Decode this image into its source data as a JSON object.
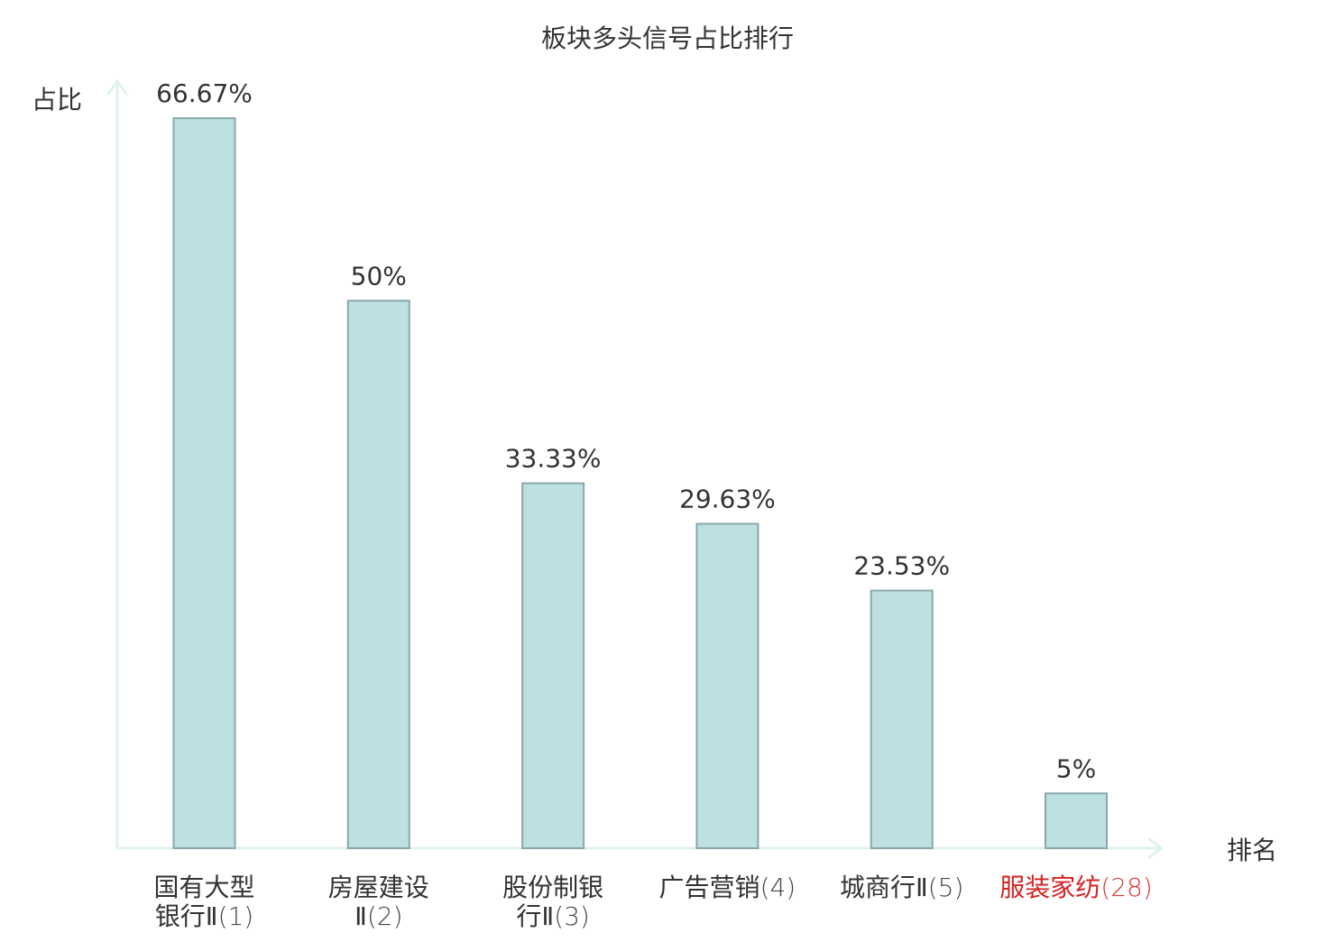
{
  "chart_data": {
    "type": "bar",
    "title": "板块多头信号占比排行",
    "ylabel": "占比",
    "xlabel": "排名",
    "categories": [
      {
        "name_lines": [
          "国有大型",
          "银行Ⅱ"
        ],
        "rank": "(1)",
        "highlight": false
      },
      {
        "name_lines": [
          "房屋建设",
          "Ⅱ"
        ],
        "rank": "(2)",
        "highlight": false
      },
      {
        "name_lines": [
          "股份制银",
          "行Ⅱ"
        ],
        "rank": "(3)",
        "highlight": false
      },
      {
        "name_lines": [
          "广告营销"
        ],
        "rank": "(4)",
        "highlight": false
      },
      {
        "name_lines": [
          "城商行Ⅱ"
        ],
        "rank": "(5)",
        "highlight": false
      },
      {
        "name_lines": [
          "服装家纺"
        ],
        "rank": "(28)",
        "highlight": true
      }
    ],
    "values": [
      66.67,
      50,
      33.33,
      29.63,
      23.53,
      5
    ],
    "value_labels": [
      "66.67%",
      "50%",
      "33.33%",
      "29.63%",
      "23.53%",
      "5%"
    ],
    "ylim": [
      0,
      66.67
    ],
    "grid": false,
    "colors": {
      "bar_fill": "#bde0e3",
      "bar_stroke": "#8aa8ab",
      "axis": "#e0f2ef",
      "text": "#333333",
      "highlight_text": "#d62222"
    }
  }
}
